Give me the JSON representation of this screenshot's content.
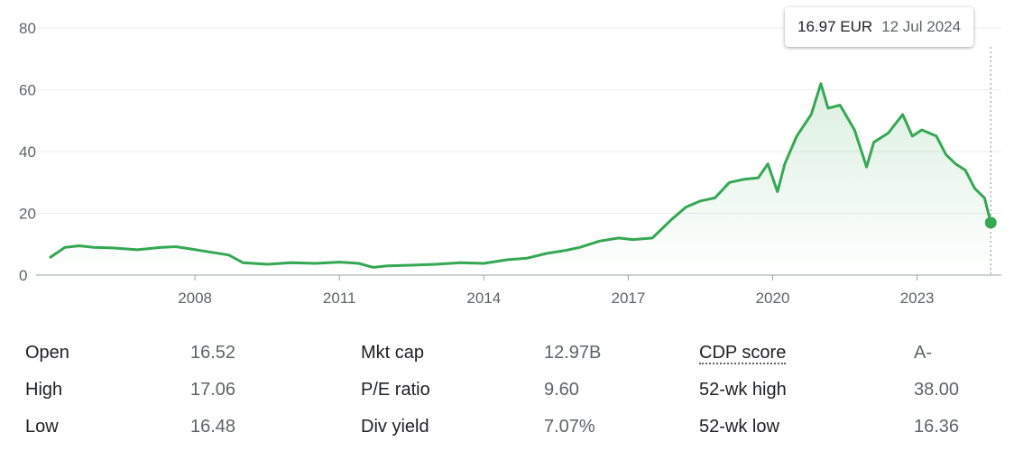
{
  "tooltip": {
    "price": "16.97 EUR",
    "date": "12 Jul 2024"
  },
  "chart_data": {
    "type": "area",
    "x_ticks": [
      2008,
      2011,
      2014,
      2017,
      2020,
      2023
    ],
    "x_tick_labels": [
      "2008",
      "2011",
      "2014",
      "2017",
      "2020",
      "2023"
    ],
    "y_ticks": [
      0,
      20,
      40,
      60,
      80
    ],
    "y_tick_labels": [
      "0",
      "20",
      "40",
      "60",
      "80"
    ],
    "ylim": [
      0,
      80
    ],
    "xlim": [
      2004.7,
      2024.75
    ],
    "grid": true,
    "line_color": "#34a853",
    "series": [
      {
        "x": [
          2005.0,
          2005.3,
          2005.6,
          2005.9,
          2006.3,
          2006.8,
          2007.3,
          2007.6,
          2007.9,
          2008.3,
          2008.7,
          2009.0,
          2009.5,
          2010.0,
          2010.5,
          2011.0,
          2011.4,
          2011.7,
          2012.0,
          2012.5,
          2013.0,
          2013.5,
          2014.0,
          2014.5,
          2014.9,
          2015.3,
          2015.7,
          2016.0,
          2016.4,
          2016.8,
          2017.1,
          2017.5,
          2017.9,
          2018.2,
          2018.5,
          2018.8,
          2019.1,
          2019.4,
          2019.7,
          2019.9,
          2020.1,
          2020.25,
          2020.5,
          2020.8,
          2021.0,
          2021.15,
          2021.4,
          2021.7,
          2021.95,
          2022.1,
          2022.4,
          2022.7,
          2022.9,
          2023.1,
          2023.4,
          2023.6,
          2023.8,
          2024.0,
          2024.2,
          2024.4,
          2024.53
        ],
        "y": [
          5.8,
          9.0,
          9.5,
          9.0,
          8.8,
          8.2,
          9.0,
          9.2,
          8.5,
          7.5,
          6.5,
          4.0,
          3.5,
          4.0,
          3.8,
          4.2,
          3.8,
          2.5,
          3.0,
          3.2,
          3.5,
          4.0,
          3.8,
          5.0,
          5.5,
          7.0,
          8.0,
          9.0,
          11.0,
          12.0,
          11.5,
          12.0,
          18.0,
          22.0,
          24.0,
          25.0,
          30.0,
          31.0,
          31.5,
          36.0,
          27.0,
          36.0,
          45.0,
          52.0,
          62.0,
          54.0,
          55.0,
          47.0,
          35.0,
          43.0,
          46.0,
          52.0,
          45.0,
          47.0,
          45.0,
          39.0,
          36.0,
          34.0,
          28.0,
          25.0,
          16.97
        ]
      }
    ],
    "last_point": {
      "x": 2024.53,
      "y": 16.97
    }
  },
  "stats": [
    [
      {
        "label": "Open",
        "value": "16.52"
      },
      {
        "label": "Mkt cap",
        "value": "12.97B"
      },
      {
        "label": "CDP score",
        "value": "A-"
      }
    ],
    [
      {
        "label": "High",
        "value": "17.06"
      },
      {
        "label": "P/E ratio",
        "value": "9.60"
      },
      {
        "label": "52-wk high",
        "value": "38.00"
      }
    ],
    [
      {
        "label": "Low",
        "value": "16.48"
      },
      {
        "label": "Div yield",
        "value": "7.07%"
      },
      {
        "label": "52-wk low",
        "value": "16.36"
      }
    ]
  ]
}
